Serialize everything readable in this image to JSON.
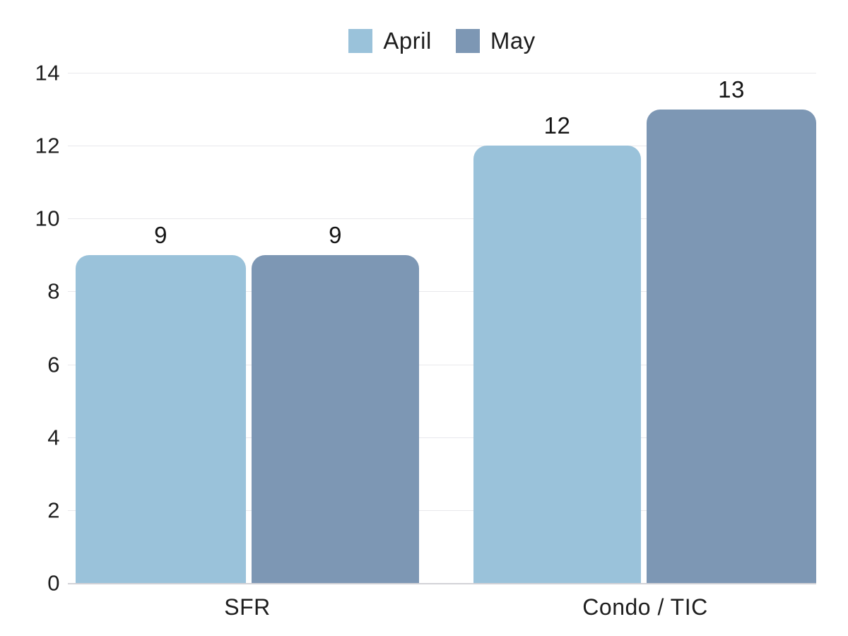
{
  "chart_data": {
    "type": "bar",
    "title": "",
    "xlabel": "",
    "ylabel": "",
    "categories": [
      "SFR",
      "Condo / TIC"
    ],
    "series": [
      {
        "name": "April",
        "color": "#9AC2DA",
        "values": [
          9,
          12
        ]
      },
      {
        "name": "May",
        "color": "#7D97B4",
        "values": [
          9,
          13
        ]
      }
    ],
    "ylim": [
      0,
      14
    ],
    "yticks": [
      0,
      2,
      4,
      6,
      8,
      10,
      12,
      14
    ],
    "grid": true,
    "legend_position": "top",
    "data_labels_shown": true
  },
  "colors": {
    "background": "#ffffff",
    "text": "#1e1e1e",
    "gridline": "#e8e8ec",
    "baseline": "#d2d2d7",
    "series_april": "#9AC2DA",
    "series_may": "#7D97B4"
  }
}
